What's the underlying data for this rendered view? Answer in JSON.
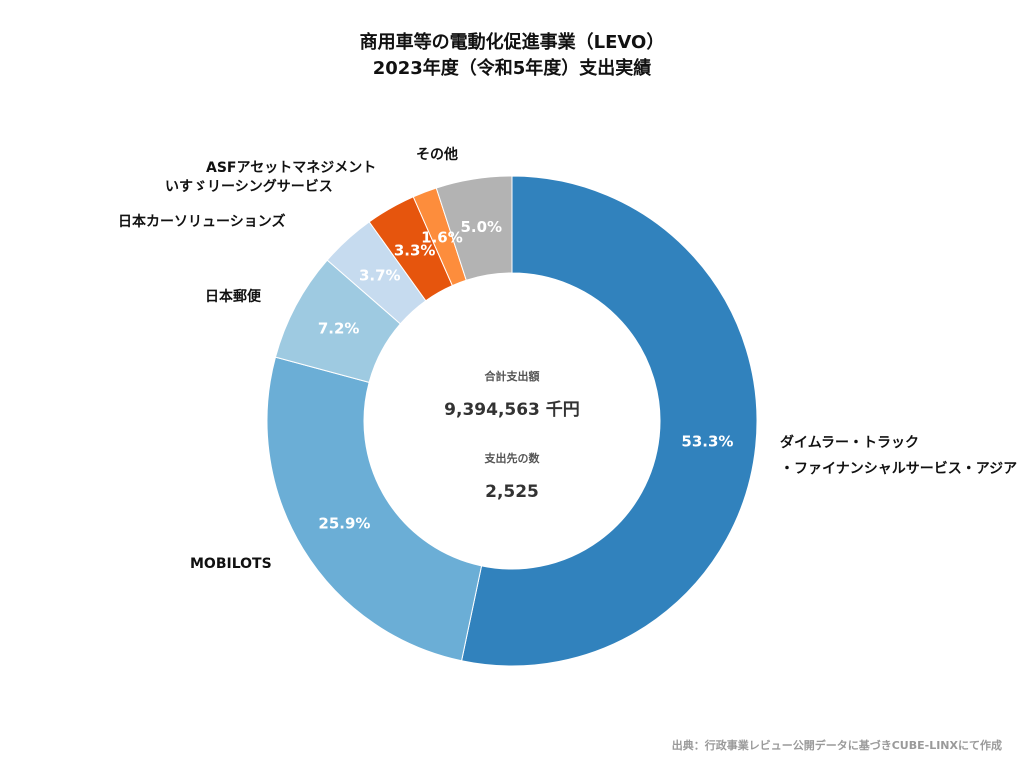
{
  "chart_data": {
    "type": "pie",
    "title": "商用車等の電動化促進事業（LEVO）",
    "subtitle": "2023年度（令和5年度）支出実績",
    "categories": [
      "ダイムラー・トラック・ファイナンシャルサービス・アジア",
      "MOBILOTS",
      "日本郵便",
      "日本カーソリューションズ",
      "いすゞリーシングサービス",
      "ASFアセットマネジメント",
      "その他"
    ],
    "label_lines": [
      [
        "ダイムラー・トラック",
        "・ファイナンシャルサービス・アジア"
      ],
      [
        "MOBILOTS"
      ],
      [
        "日本郵便"
      ],
      [
        "日本カーソリューションズ"
      ],
      [
        "いすゞリーシングサービス"
      ],
      [
        "ASFアセットマネジメント"
      ],
      [
        "その他"
      ]
    ],
    "values": [
      53.3,
      25.9,
      7.2,
      3.7,
      3.3,
      1.6,
      5.0
    ],
    "value_labels": [
      "53.3%",
      "25.9%",
      "7.2%",
      "3.7%",
      "3.3%",
      "1.6%",
      "5.0%"
    ],
    "colors": [
      "#3182bd",
      "#6baed6",
      "#9ecae1",
      "#c6dbef",
      "#e6550d",
      "#fd8d3c",
      "#b3b3b3"
    ],
    "donut": true,
    "center": {
      "total_caption": "合計支出額",
      "total_value": "9,394,563 千円",
      "count_caption": "支出先の数",
      "count_value": "2,525"
    }
  },
  "source_note": "出典：行政事業レビュー公開データに基づきCUBE-LINXにて作成"
}
